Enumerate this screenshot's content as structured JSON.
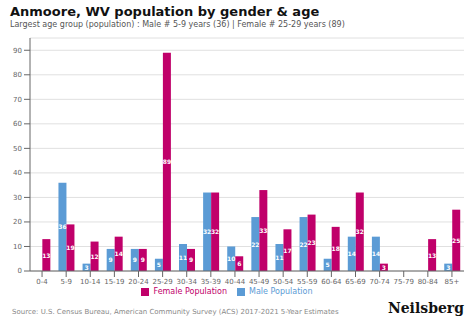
{
  "chart_data": {
    "type": "bar",
    "title": "Anmoore, WV population by gender & age",
    "subtitle": "Largest age group (population) : Male # 5-9 years (36) | Female # 25-29 years (89)",
    "categories": [
      "0-4",
      "5-9",
      "10-14",
      "15-19",
      "20-24",
      "25-29",
      "30-34",
      "35-39",
      "40-44",
      "45-49",
      "50-54",
      "55-59",
      "60-64",
      "65-69",
      "70-74",
      "75-79",
      "80-84",
      "85+"
    ],
    "series": [
      {
        "name": "Male Population",
        "color": "#5b9bd5",
        "values": [
          0,
          36,
          3,
          9,
          9,
          5,
          11,
          32,
          10,
          22,
          11,
          22,
          5,
          14,
          14,
          0,
          0,
          3
        ]
      },
      {
        "name": "Female Population",
        "color": "#c0006a",
        "values": [
          13,
          19,
          12,
          14,
          9,
          89,
          9,
          32,
          6,
          33,
          17,
          23,
          18,
          32,
          3,
          0,
          13,
          25
        ]
      }
    ],
    "ylim": [
      0,
      95
    ],
    "yticks": [
      0,
      10,
      20,
      30,
      40,
      50,
      60,
      70,
      80,
      90
    ],
    "grid": true,
    "legend": "bottom",
    "data_labels": true,
    "annotations": [
      "Source: U.S. Census Bureau, American Community Survey (ACS) 2017-2021 5-Year Estimates",
      "Neilsberg"
    ]
  }
}
